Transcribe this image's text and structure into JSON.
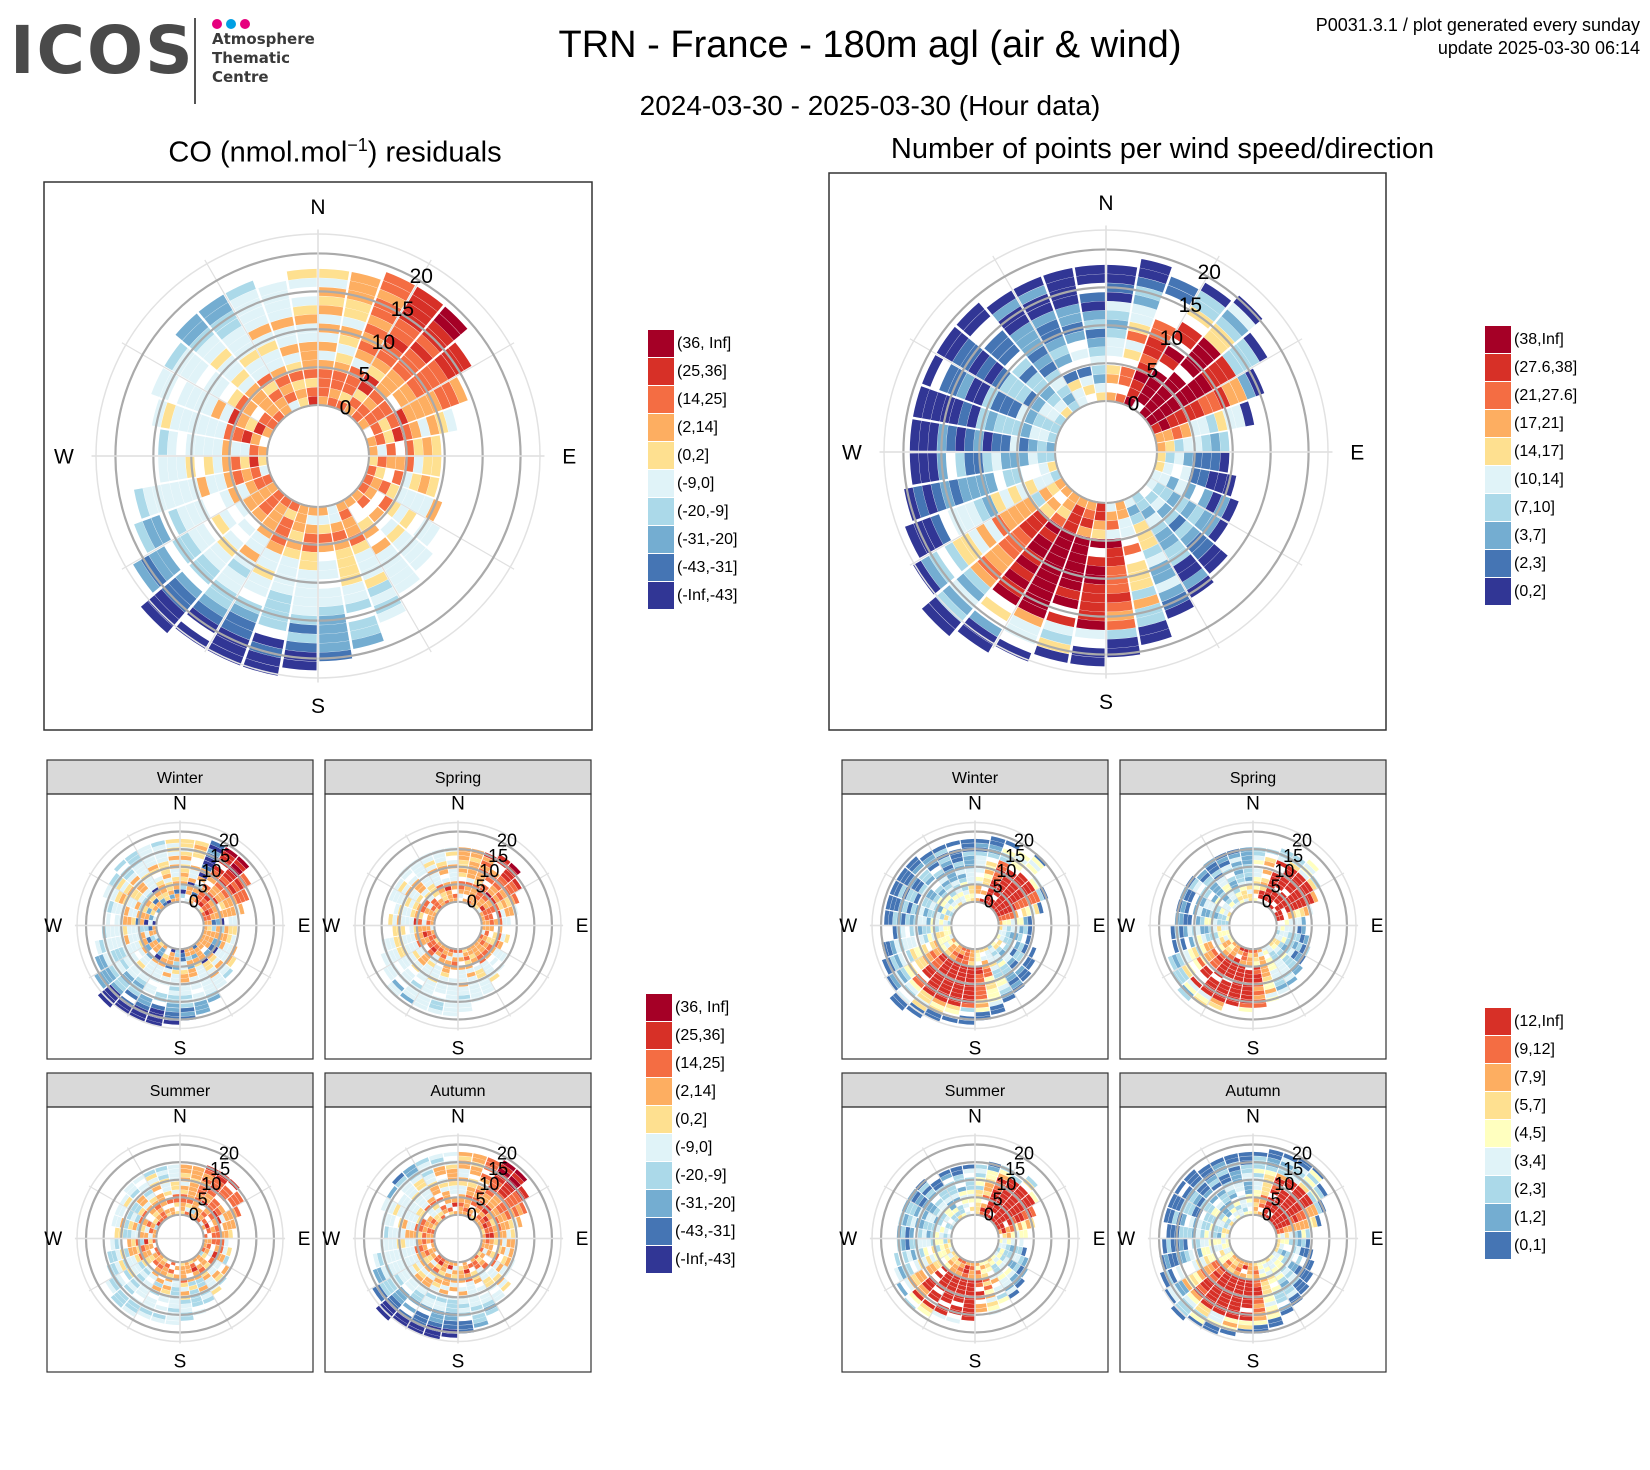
{
  "header": {
    "logo_text": "ICOS",
    "logo_subtitle": "Atmosphere\nThematic\nCentre",
    "logo_dot_colors": [
      "#e6007e",
      "#009fe3",
      "#e6007e"
    ],
    "title": "TRN - France - 180m agl (air & wind)",
    "subtitle": "2024-03-30 - 2025-03-30 (Hour data)",
    "meta_line1": "P0031.3.1 / plot generated every sunday",
    "meta_line2": "update  2025-03-30 06:14"
  },
  "panels": {
    "left_title_prefix": "CO (nmol.mol",
    "left_title_sup": "−1",
    "left_title_suffix": ") residuals",
    "right_title": "Number of points per wind speed/direction"
  },
  "compass": {
    "n": "N",
    "e": "E",
    "s": "S",
    "w": "W"
  },
  "seasons": [
    "Winter",
    "Spring",
    "Summer",
    "Autumn"
  ],
  "legends": {
    "co_residuals": [
      {
        "label": "(36, Inf]",
        "color": "#a50026"
      },
      {
        "label": "(25,36]",
        "color": "#d73027"
      },
      {
        "label": "(14,25]",
        "color": "#f46d43"
      },
      {
        "label": "(2,14]",
        "color": "#fdae61"
      },
      {
        "label": "(0,2]",
        "color": "#fee090"
      },
      {
        "label": "(-9,0]",
        "color": "#e0f3f8"
      },
      {
        "label": "(-20,-9]",
        "color": "#abd9e9"
      },
      {
        "label": "(-31,-20]",
        "color": "#74add1"
      },
      {
        "label": "(-43,-31]",
        "color": "#4575b4"
      },
      {
        "label": "(-Inf,-43]",
        "color": "#313695"
      }
    ],
    "points_main": [
      {
        "label": "(38,Inf]",
        "color": "#a50026"
      },
      {
        "label": "(27.6,38]",
        "color": "#d73027"
      },
      {
        "label": "(21,27.6]",
        "color": "#f46d43"
      },
      {
        "label": "(17,21]",
        "color": "#fdae61"
      },
      {
        "label": "(14,17]",
        "color": "#fee090"
      },
      {
        "label": "(10,14]",
        "color": "#e0f3f8"
      },
      {
        "label": "(7,10]",
        "color": "#abd9e9"
      },
      {
        "label": "(3,7]",
        "color": "#74add1"
      },
      {
        "label": "(2,3]",
        "color": "#4575b4"
      },
      {
        "label": "(0,2]",
        "color": "#313695"
      }
    ],
    "points_seasonal": [
      {
        "label": "(12,Inf]",
        "color": "#d73027"
      },
      {
        "label": "(9,12]",
        "color": "#f46d43"
      },
      {
        "label": "(7,9]",
        "color": "#fdae61"
      },
      {
        "label": "(5,7]",
        "color": "#fee090"
      },
      {
        "label": "(4,5]",
        "color": "#ffffbf"
      },
      {
        "label": "(3,4]",
        "color": "#e0f3f8"
      },
      {
        "label": "(2,3]",
        "color": "#abd9e9"
      },
      {
        "label": "(1,2]",
        "color": "#74add1"
      },
      {
        "label": "(0,1]",
        "color": "#4575b4"
      }
    ]
  },
  "chart_data": [
    {
      "type": "polar-heatmap",
      "title": "CO (nmol.mol−1) residuals",
      "radial_variable": "wind speed",
      "radial_ticks": [
        0,
        5,
        10,
        15,
        20
      ],
      "angular_labels": [
        "N",
        "E",
        "S",
        "W"
      ],
      "sectors_deg": 10,
      "approx_extent_by_direction": [
        {
          "dir": "N",
          "max_speed": 17
        },
        {
          "dir": "NE",
          "max_speed": 19
        },
        {
          "dir": "E",
          "max_speed": 8
        },
        {
          "dir": "SE",
          "max_speed": 12
        },
        {
          "dir": "S",
          "max_speed": 21
        },
        {
          "dir": "SW",
          "max_speed": 23
        },
        {
          "dir": "W",
          "max_speed": 14
        },
        {
          "dir": "NW",
          "max_speed": 17
        }
      ],
      "notes": "Positive residuals (2 to >36) dominate NE sector 5-20 m/s; negative residuals dominate S/SW at high speed."
    },
    {
      "type": "polar-heatmap",
      "title": "Number of points per wind speed/direction",
      "radial_variable": "wind speed",
      "radial_ticks": [
        0,
        5,
        10,
        15,
        20
      ],
      "angular_labels": [
        "N",
        "E",
        "S",
        "W"
      ],
      "sectors_deg": 10,
      "approx_extent_by_direction": [
        {
          "dir": "N",
          "max_speed": 17
        },
        {
          "dir": "NE",
          "max_speed": 20
        },
        {
          "dir": "E",
          "max_speed": 8
        },
        {
          "dir": "SE",
          "max_speed": 14
        },
        {
          "dir": "S",
          "max_speed": 20
        },
        {
          "dir": "SW",
          "max_speed": 24
        },
        {
          "dir": "W",
          "max_speed": 18
        },
        {
          "dir": "NW",
          "max_speed": 18
        }
      ],
      "notes": "Highest counts (>27.6) in NE 3-12 m/s and SSW 5-15 m/s."
    },
    {
      "type": "polar-heatmap",
      "title": "Winter",
      "variable": "CO residuals",
      "radial_ticks": [
        0,
        5,
        10,
        15,
        20
      ]
    },
    {
      "type": "polar-heatmap",
      "title": "Spring",
      "variable": "CO residuals",
      "radial_ticks": [
        0,
        5,
        10,
        15,
        20
      ]
    },
    {
      "type": "polar-heatmap",
      "title": "Summer",
      "variable": "CO residuals",
      "radial_ticks": [
        0,
        5,
        10,
        15,
        20
      ]
    },
    {
      "type": "polar-heatmap",
      "title": "Autumn",
      "variable": "CO residuals",
      "radial_ticks": [
        0,
        5,
        10,
        15,
        20
      ]
    },
    {
      "type": "polar-heatmap",
      "title": "Winter",
      "variable": "number of points",
      "radial_ticks": [
        0,
        5,
        10,
        15,
        20
      ]
    },
    {
      "type": "polar-heatmap",
      "title": "Spring",
      "variable": "number of points",
      "radial_ticks": [
        0,
        5,
        10,
        15,
        20
      ]
    },
    {
      "type": "polar-heatmap",
      "title": "Summer",
      "variable": "number of points",
      "radial_ticks": [
        0,
        5,
        10,
        15,
        20
      ]
    },
    {
      "type": "polar-heatmap",
      "title": "Autumn",
      "variable": "number of points",
      "radial_ticks": [
        0,
        5,
        10,
        15,
        20
      ]
    }
  ]
}
